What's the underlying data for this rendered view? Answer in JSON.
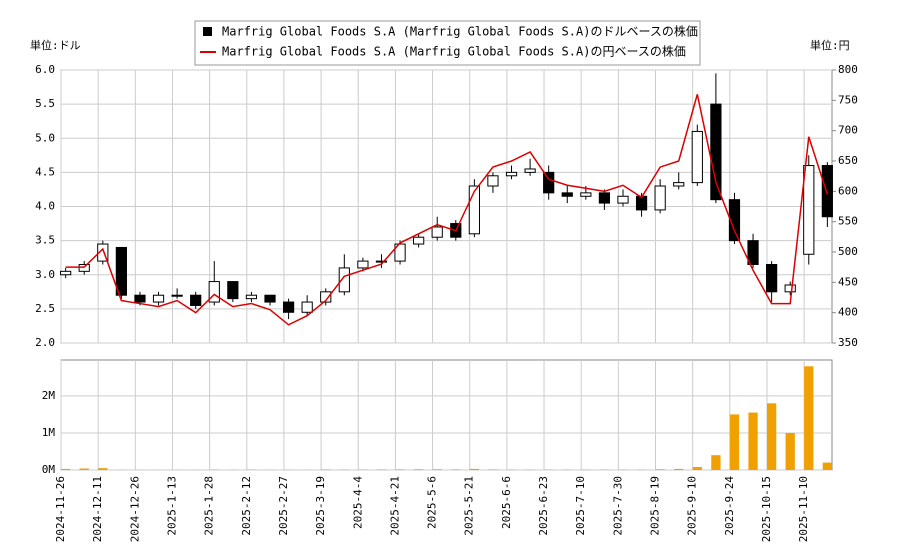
{
  "chart_data": [
    {
      "type": "candlestick",
      "legend": [
        {
          "name": "Marfrig Global Foods S.A (Marfrig Global Foods S.A)のドルベースの株価",
          "color": "#000000"
        },
        {
          "name": "Marfrig Global Foods S.A (Marfrig Global Foods S.A)の円ベースの株価",
          "color": "#dd0000"
        }
      ],
      "y_label": "単位:ドル",
      "y2_label": "単位:円",
      "categories": [
        "2024-11-26",
        null,
        "2024-12-11",
        null,
        "2024-12-26",
        null,
        "2025-1-13",
        null,
        "2025-1-28",
        null,
        "2025-2-12",
        null,
        "2025-2-27",
        null,
        "2025-3-19",
        null,
        "2025-4-4",
        null,
        "2025-4-21",
        null,
        "2025-5-6",
        null,
        "2025-5-21",
        null,
        "2025-6-6",
        null,
        "2025-6-23",
        null,
        "2025-7-10",
        null,
        "2025-7-30",
        null,
        "2025-8-19",
        null,
        "2025-9-10",
        null,
        "2025-9-24",
        null,
        "2025-10-15",
        null,
        "2025-11-10",
        null
      ],
      "open": [
        3.0,
        3.05,
        3.2,
        3.4,
        2.7,
        2.6,
        2.7,
        2.7,
        2.6,
        2.9,
        2.65,
        2.7,
        2.6,
        2.45,
        2.6,
        2.75,
        3.1,
        3.2,
        3.2,
        3.45,
        3.55,
        3.75,
        3.6,
        4.3,
        4.45,
        4.5,
        4.5,
        4.2,
        4.15,
        4.2,
        4.05,
        4.15,
        3.95,
        4.3,
        4.35,
        5.5,
        4.1,
        3.5,
        3.15,
        2.75,
        3.3,
        4.6
      ],
      "high": [
        3.1,
        3.2,
        3.5,
        3.4,
        2.75,
        2.75,
        2.8,
        2.75,
        3.2,
        2.9,
        2.75,
        2.7,
        2.65,
        2.7,
        2.8,
        3.3,
        3.25,
        3.3,
        3.5,
        3.6,
        3.85,
        3.8,
        4.4,
        4.5,
        4.6,
        4.7,
        4.6,
        4.3,
        4.3,
        4.25,
        4.25,
        4.2,
        4.4,
        4.5,
        5.2,
        5.95,
        4.2,
        3.6,
        3.2,
        2.9,
        4.75,
        4.65
      ],
      "low": [
        2.95,
        3.0,
        3.15,
        2.65,
        2.55,
        2.55,
        2.65,
        2.5,
        2.55,
        2.6,
        2.6,
        2.55,
        2.35,
        2.4,
        2.55,
        2.7,
        3.05,
        3.1,
        3.15,
        3.4,
        3.5,
        3.5,
        3.55,
        4.2,
        4.4,
        4.45,
        4.1,
        4.05,
        4.1,
        3.95,
        4.0,
        3.85,
        3.9,
        4.25,
        4.3,
        4.05,
        3.45,
        3.1,
        2.6,
        2.7,
        3.15,
        3.7
      ],
      "close": [
        3.05,
        3.15,
        3.45,
        2.7,
        2.6,
        2.7,
        2.7,
        2.55,
        2.9,
        2.65,
        2.7,
        2.6,
        2.45,
        2.6,
        2.75,
        3.1,
        3.2,
        3.2,
        3.45,
        3.55,
        3.7,
        3.55,
        4.3,
        4.45,
        4.5,
        4.55,
        4.2,
        4.15,
        4.2,
        4.05,
        4.15,
        3.95,
        4.3,
        4.35,
        5.1,
        4.1,
        3.5,
        3.15,
        2.75,
        2.85,
        4.6,
        3.85
      ],
      "series": [
        {
          "axis": "y2",
          "color": "#dd0000",
          "values": [
            475,
            475,
            505,
            420,
            415,
            410,
            420,
            400,
            430,
            410,
            415,
            405,
            380,
            395,
            420,
            460,
            470,
            480,
            515,
            530,
            545,
            535,
            600,
            640,
            650,
            665,
            620,
            610,
            605,
            600,
            610,
            590,
            640,
            650,
            760,
            615,
            535,
            470,
            415,
            415,
            690,
            595
          ]
        }
      ],
      "ylim": [
        2.0,
        6.0
      ],
      "yticks": [
        {
          "value": 2,
          "label": "2.0"
        },
        {
          "value": 2.5,
          "label": "2.5"
        },
        {
          "value": 3,
          "label": "3.0"
        },
        {
          "value": 3.5,
          "label": "3.5"
        },
        {
          "value": 4,
          "label": "4.0"
        },
        {
          "value": 4.5,
          "label": "4.5"
        },
        {
          "value": 5,
          "label": "5.0"
        },
        {
          "value": 5.5,
          "label": "5.5"
        },
        {
          "value": 6,
          "label": "6.0"
        }
      ],
      "y2lim": [
        350,
        800
      ],
      "y2ticks": [
        350,
        400,
        450,
        500,
        550,
        600,
        650,
        700,
        750,
        800
      ],
      "grid": true
    },
    {
      "type": "bar",
      "color": "#f0a000",
      "values": [
        30000,
        40000,
        50000,
        5000,
        3000,
        3000,
        5000,
        3000,
        10000,
        5000,
        10000,
        5000,
        5000,
        5000,
        15000,
        10000,
        10000,
        15000,
        15000,
        20000,
        20000,
        15000,
        30000,
        15000,
        10000,
        10000,
        10000,
        10000,
        10000,
        10000,
        10000,
        10000,
        20000,
        30000,
        80000,
        400000,
        1500000,
        1550000,
        1800000,
        1000000,
        2800000,
        200000
      ],
      "ylim": [
        0,
        2970000
      ],
      "yticks": [
        {
          "value": 0,
          "label": "0M"
        },
        {
          "value": 1000000,
          "label": "1M"
        },
        {
          "value": 2000000,
          "label": "2M"
        }
      ],
      "grid": true
    }
  ]
}
